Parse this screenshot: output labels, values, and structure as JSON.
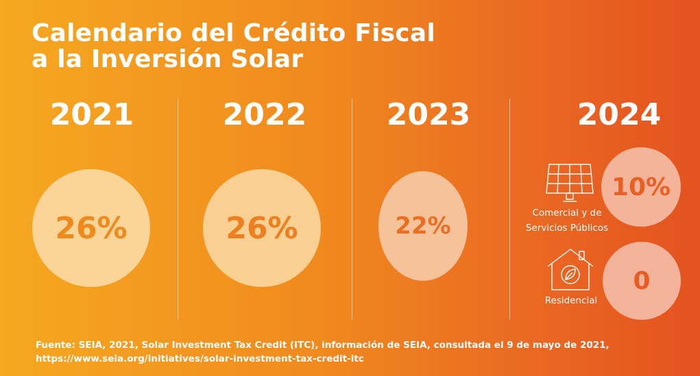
{
  "title": {
    "line1": "Calendario del Crédito Fiscal",
    "line2": "a la Inversión Solar"
  },
  "years": [
    {
      "year": "2021",
      "rate": "26%"
    },
    {
      "year": "2022",
      "rate": "26%"
    },
    {
      "year": "2023",
      "rate": "22%"
    },
    {
      "year": "2024"
    }
  ],
  "year_2024": {
    "commercial": {
      "label_line1": "Comercial y de",
      "label_line2": "Servicios Públicos",
      "rate": "10%",
      "icon": "solar-panel-icon"
    },
    "residential": {
      "label": "Residencial",
      "rate": "0",
      "icon": "house-leaf-icon"
    }
  },
  "source": {
    "line1": "Fuente: SEIA, 2021, Solar Investment Tax Credit (ITC), información de SEIA, consultada el 9 de mayo de 2021,",
    "line2": "https://www.seia.org/initiatives/solar-investment-tax-credit-itc"
  },
  "colors": {
    "gradient_start": "#f6a821",
    "gradient_end": "#e4521f",
    "text": "#ffffff"
  }
}
